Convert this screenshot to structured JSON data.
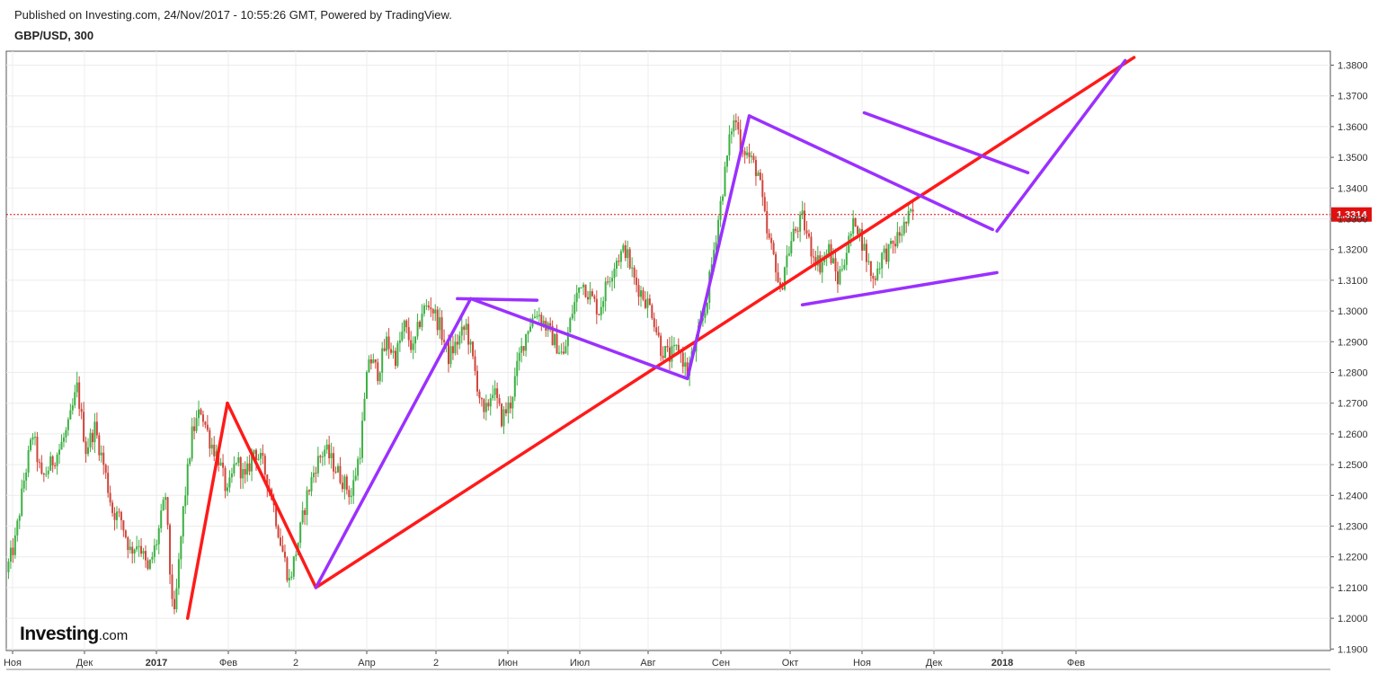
{
  "header": {
    "published": "Published on Investing.com, 24/Nov/2017 - 10:55:26 GMT, Powered by TradingView.",
    "symbol": "GBP/USD, 300"
  },
  "logo": {
    "name": "Investing",
    "suffix": ".com"
  },
  "colors": {
    "up": "#3cb043",
    "down": "#d0453a",
    "red_line": "#ff1a1a",
    "purple_line": "#9b30ff",
    "current_price": "#e01010",
    "grid": "#ececec"
  },
  "chart_data": {
    "type": "candlestick",
    "symbol": "GBP/USD",
    "interval": "300",
    "last_price": 1.3314,
    "last_price_label": "1.3314",
    "ylim": [
      1.185,
      1.385
    ],
    "grid": true,
    "y_ticks": [
      "1.1900",
      "1.2000",
      "1.2100",
      "1.2200",
      "1.2300",
      "1.2400",
      "1.2500",
      "1.2600",
      "1.2700",
      "1.2800",
      "1.2900",
      "1.3000",
      "1.3100",
      "1.3200",
      "1.3300",
      "1.3400",
      "1.3500",
      "1.3600",
      "1.3700",
      "1.3800"
    ],
    "x_ticks": [
      {
        "label": "Ноя",
        "bold": false
      },
      {
        "label": "Дек",
        "bold": false
      },
      {
        "label": "2017",
        "bold": true
      },
      {
        "label": "Фев",
        "bold": false
      },
      {
        "label": "2",
        "bold": false
      },
      {
        "label": "Апр",
        "bold": false
      },
      {
        "label": "2",
        "bold": false
      },
      {
        "label": "Июн",
        "bold": false
      },
      {
        "label": "Июл",
        "bold": false
      },
      {
        "label": "Авг",
        "bold": false
      },
      {
        "label": "Сен",
        "bold": false
      },
      {
        "label": "Окт",
        "bold": false
      },
      {
        "label": "Ноя",
        "bold": false
      },
      {
        "label": "Дек",
        "bold": false
      },
      {
        "label": "2018",
        "bold": true
      },
      {
        "label": "Фев",
        "bold": false
      }
    ],
    "price_path": [
      [
        0,
        1.215
      ],
      [
        2,
        1.225
      ],
      [
        4,
        1.245
      ],
      [
        6,
        1.26
      ],
      [
        8,
        1.245
      ],
      [
        10,
        1.25
      ],
      [
        12,
        1.255
      ],
      [
        14,
        1.262
      ],
      [
        16,
        1.275
      ],
      [
        18,
        1.255
      ],
      [
        20,
        1.262
      ],
      [
        22,
        1.25
      ],
      [
        24,
        1.235
      ],
      [
        26,
        1.232
      ],
      [
        28,
        1.222
      ],
      [
        30,
        1.225
      ],
      [
        32,
        1.215
      ],
      [
        34,
        1.225
      ],
      [
        36,
        1.24
      ],
      [
        37,
        1.215
      ],
      [
        38,
        1.2
      ],
      [
        40,
        1.235
      ],
      [
        42,
        1.26
      ],
      [
        44,
        1.268
      ],
      [
        46,
        1.258
      ],
      [
        48,
        1.252
      ],
      [
        50,
        1.24
      ],
      [
        52,
        1.252
      ],
      [
        54,
        1.245
      ],
      [
        56,
        1.255
      ],
      [
        58,
        1.25
      ],
      [
        60,
        1.24
      ],
      [
        62,
        1.225
      ],
      [
        64,
        1.212
      ],
      [
        66,
        1.225
      ],
      [
        68,
        1.24
      ],
      [
        70,
        1.25
      ],
      [
        72,
        1.255
      ],
      [
        74,
        1.25
      ],
      [
        76,
        1.245
      ],
      [
        78,
        1.24
      ],
      [
        80,
        1.255
      ],
      [
        82,
        1.285
      ],
      [
        84,
        1.28
      ],
      [
        86,
        1.29
      ],
      [
        88,
        1.285
      ],
      [
        90,
        1.295
      ],
      [
        92,
        1.287
      ],
      [
        94,
        1.3
      ],
      [
        96,
        1.302
      ],
      [
        98,
        1.295
      ],
      [
        100,
        1.285
      ],
      [
        102,
        1.29
      ],
      [
        104,
        1.295
      ],
      [
        106,
        1.28
      ],
      [
        108,
        1.265
      ],
      [
        110,
        1.275
      ],
      [
        112,
        1.265
      ],
      [
        114,
        1.27
      ],
      [
        116,
        1.285
      ],
      [
        118,
        1.295
      ],
      [
        120,
        1.3
      ],
      [
        122,
        1.295
      ],
      [
        124,
        1.29
      ],
      [
        126,
        1.285
      ],
      [
        128,
        1.3
      ],
      [
        130,
        1.31
      ],
      [
        132,
        1.305
      ],
      [
        134,
        1.3
      ],
      [
        136,
        1.31
      ],
      [
        138,
        1.317
      ],
      [
        140,
        1.32
      ],
      [
        142,
        1.31
      ],
      [
        144,
        1.305
      ],
      [
        146,
        1.3
      ],
      [
        148,
        1.288
      ],
      [
        150,
        1.285
      ],
      [
        152,
        1.288
      ],
      [
        154,
        1.28
      ],
      [
        156,
        1.29
      ],
      [
        158,
        1.3
      ],
      [
        160,
        1.32
      ],
      [
        162,
        1.34
      ],
      [
        164,
        1.36
      ],
      [
        165,
        1.362
      ],
      [
        166,
        1.355
      ],
      [
        168,
        1.35
      ],
      [
        170,
        1.345
      ],
      [
        172,
        1.325
      ],
      [
        174,
        1.315
      ],
      [
        175,
        1.305
      ],
      [
        176,
        1.315
      ],
      [
        178,
        1.325
      ],
      [
        180,
        1.33
      ],
      [
        182,
        1.32
      ],
      [
        184,
        1.315
      ],
      [
        186,
        1.32
      ],
      [
        188,
        1.31
      ],
      [
        190,
        1.32
      ],
      [
        192,
        1.33
      ],
      [
        194,
        1.32
      ],
      [
        196,
        1.31
      ],
      [
        198,
        1.318
      ],
      [
        200,
        1.32
      ],
      [
        202,
        1.325
      ],
      [
        204,
        1.33
      ],
      [
        205,
        1.332
      ]
    ],
    "annotations": [
      {
        "color": "red",
        "points": [
          [
            41,
            1.2
          ],
          [
            50,
            1.27
          ]
        ]
      },
      {
        "color": "red",
        "points": [
          [
            50,
            1.27
          ],
          [
            70,
            1.21
          ]
        ]
      },
      {
        "color": "red",
        "points": [
          [
            70,
            1.21
          ],
          [
            255,
            1.3825
          ]
        ]
      },
      {
        "color": "purple",
        "points": [
          [
            70,
            1.21
          ],
          [
            105,
            1.304
          ]
        ]
      },
      {
        "color": "purple",
        "points": [
          [
            102,
            1.304
          ],
          [
            120,
            1.3035
          ]
        ]
      },
      {
        "color": "purple",
        "points": [
          [
            105,
            1.304
          ],
          [
            154,
            1.278
          ]
        ]
      },
      {
        "color": "purple",
        "points": [
          [
            154,
            1.278
          ],
          [
            168,
            1.3635
          ]
        ]
      },
      {
        "color": "purple",
        "points": [
          [
            168,
            1.3635
          ],
          [
            223,
            1.3265
          ]
        ]
      },
      {
        "color": "purple",
        "points": [
          [
            194,
            1.3645
          ],
          [
            231,
            1.345
          ]
        ]
      },
      {
        "color": "purple",
        "points": [
          [
            180,
            1.302
          ],
          [
            224,
            1.3125
          ]
        ]
      },
      {
        "color": "purple",
        "points": [
          [
            224,
            1.326
          ],
          [
            253,
            1.3815
          ]
        ]
      }
    ]
  }
}
